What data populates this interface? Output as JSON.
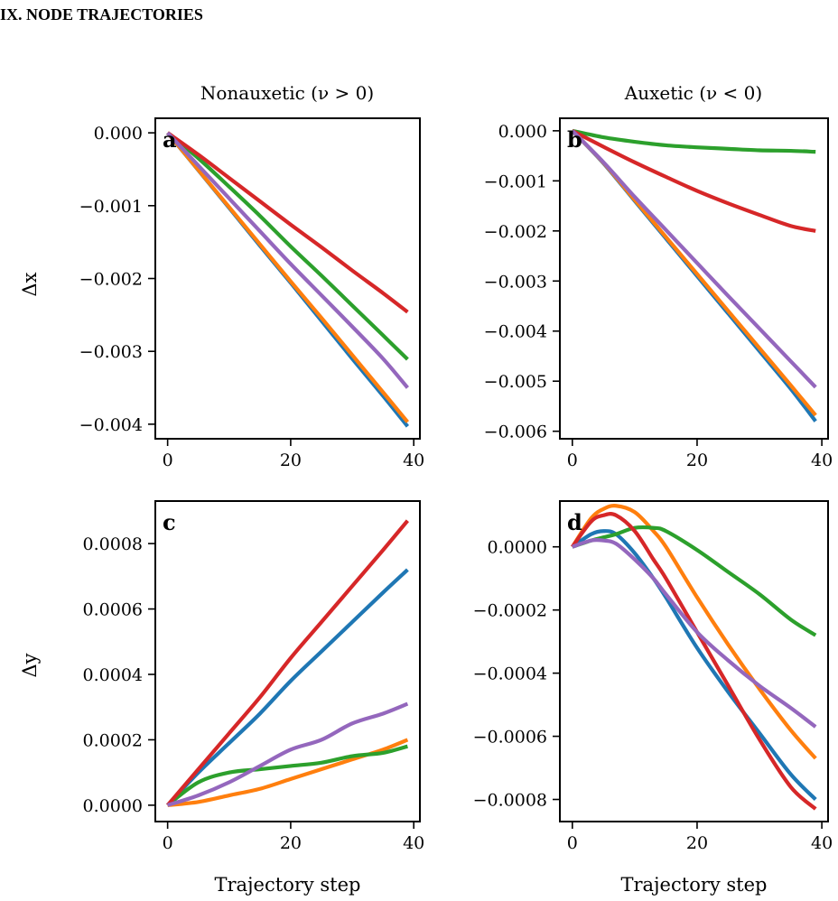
{
  "heading": "IX.    NODE TRAJECTORIES",
  "columns": {
    "left": "Nonauxetic (ν > 0)",
    "right": "Auxetic (ν < 0)"
  },
  "row_labels": {
    "top": "Δx",
    "bottom": "Δy"
  },
  "colors": {
    "blue": "#1f77b4",
    "orange": "#ff7f0e",
    "green": "#2ca02c",
    "red": "#d62728",
    "purple": "#9467bd"
  },
  "chart_data": [
    {
      "type": "line",
      "panel": "a",
      "xlabel": "",
      "ylabel": "Δx",
      "xlim": [
        -2,
        41
      ],
      "ylim": [
        -0.0042,
        0.0002
      ],
      "xticks": [
        0,
        20,
        40
      ],
      "xtick_labels": [
        "0",
        "20",
        "40"
      ],
      "yticks": [
        0,
        -0.001,
        -0.002,
        -0.003,
        -0.004
      ],
      "ytick_labels": [
        "0.000",
        "−0.001",
        "−0.002",
        "−0.003",
        "−0.004"
      ],
      "x": [
        0,
        5,
        10,
        15,
        20,
        25,
        30,
        35,
        39
      ],
      "series": [
        {
          "color": "blue",
          "values": [
            0,
            -0.000515,
            -0.00103,
            -0.00155,
            -0.00206,
            -0.00258,
            -0.0031,
            -0.00361,
            -0.00403
          ]
        },
        {
          "color": "orange",
          "values": [
            0,
            -0.00051,
            -0.00102,
            -0.00153,
            -0.00204,
            -0.00254,
            -0.00305,
            -0.00356,
            -0.00397
          ]
        },
        {
          "color": "green",
          "values": [
            0,
            -0.00035,
            -0.00074,
            -0.00114,
            -0.00156,
            -0.00196,
            -0.00237,
            -0.00278,
            -0.00311
          ]
        },
        {
          "color": "red",
          "values": [
            0,
            -0.0003,
            -0.00062,
            -0.00094,
            -0.00126,
            -0.00157,
            -0.00189,
            -0.0022,
            -0.00246
          ]
        },
        {
          "color": "purple",
          "values": [
            0,
            -0.00045,
            -0.0009,
            -0.00135,
            -0.0018,
            -0.00223,
            -0.00266,
            -0.0031,
            -0.0035
          ]
        }
      ]
    },
    {
      "type": "line",
      "panel": "b",
      "xlabel": "",
      "ylabel": "",
      "xlim": [
        -2,
        41
      ],
      "ylim": [
        -0.00615,
        0.00025
      ],
      "xticks": [
        0,
        20,
        40
      ],
      "xtick_labels": [
        "0",
        "20",
        "40"
      ],
      "yticks": [
        0,
        -0.001,
        -0.002,
        -0.003,
        -0.004,
        -0.005,
        -0.006
      ],
      "ytick_labels": [
        "0.000",
        "−0.001",
        "−0.002",
        "−0.003",
        "−0.004",
        "−0.005",
        "−0.006"
      ],
      "x": [
        0,
        5,
        10,
        15,
        20,
        25,
        30,
        35,
        39
      ],
      "series": [
        {
          "color": "blue",
          "values": [
            0,
            -0.00065,
            -0.0014,
            -0.00215,
            -0.0029,
            -0.00365,
            -0.0044,
            -0.00515,
            -0.0058
          ]
        },
        {
          "color": "orange",
          "values": [
            0,
            -0.00064,
            -0.00138,
            -0.00212,
            -0.00286,
            -0.0036,
            -0.00434,
            -0.00508,
            -0.00568
          ]
        },
        {
          "color": "green",
          "values": [
            0,
            -0.00013,
            -0.00022,
            -0.00029,
            -0.00033,
            -0.00036,
            -0.00039,
            -0.0004,
            -0.00042
          ]
        },
        {
          "color": "red",
          "values": [
            0,
            -0.00032,
            -0.00063,
            -0.00092,
            -0.0012,
            -0.00145,
            -0.00168,
            -0.0019,
            -0.002
          ]
        },
        {
          "color": "purple",
          "values": [
            0,
            -0.00063,
            -0.00132,
            -0.00198,
            -0.00264,
            -0.0033,
            -0.00395,
            -0.0046,
            -0.00512
          ]
        }
      ]
    },
    {
      "type": "line",
      "panel": "c",
      "xlabel": "Trajectory step",
      "ylabel": "Δy",
      "xlim": [
        -2,
        41
      ],
      "ylim": [
        -5e-05,
        0.00093
      ],
      "xticks": [
        0,
        20,
        40
      ],
      "xtick_labels": [
        "0",
        "20",
        "40"
      ],
      "yticks": [
        0,
        0.0002,
        0.0004,
        0.0006,
        0.0008
      ],
      "ytick_labels": [
        "0.0000",
        "0.0002",
        "0.0004",
        "0.0006",
        "0.0008"
      ],
      "x": [
        0,
        5,
        10,
        15,
        20,
        25,
        30,
        35,
        39
      ],
      "series": [
        {
          "color": "blue",
          "values": [
            0,
            0.0001,
            0.00019,
            0.00028,
            0.00038,
            0.00047,
            0.00056,
            0.00065,
            0.00072
          ]
        },
        {
          "color": "orange",
          "values": [
            0,
            1e-05,
            3e-05,
            5e-05,
            8e-05,
            0.00011,
            0.00014,
            0.00017,
            0.0002
          ]
        },
        {
          "color": "green",
          "values": [
            0,
            7e-05,
            0.0001,
            0.00011,
            0.00012,
            0.00013,
            0.00015,
            0.00016,
            0.00018
          ]
        },
        {
          "color": "red",
          "values": [
            0,
            0.00011,
            0.00022,
            0.00033,
            0.00045,
            0.00056,
            0.00067,
            0.00078,
            0.00087
          ]
        },
        {
          "color": "purple",
          "values": [
            0,
            3e-05,
            7e-05,
            0.00012,
            0.00017,
            0.0002,
            0.00025,
            0.00028,
            0.00031
          ]
        }
      ]
    },
    {
      "type": "line",
      "panel": "d",
      "xlabel": "Trajectory step",
      "ylabel": "",
      "xlim": [
        -2,
        41
      ],
      "ylim": [
        -0.00087,
        0.000145
      ],
      "xticks": [
        0,
        20,
        40
      ],
      "xtick_labels": [
        "0",
        "20",
        "40"
      ],
      "yticks": [
        0,
        -0.0002,
        -0.0004,
        -0.0006,
        -0.0008
      ],
      "ytick_labels": [
        "0.0000",
        "−0.0002",
        "−0.0004",
        "−0.0006",
        "−0.0008"
      ],
      "x": [
        0,
        3,
        5,
        7,
        10,
        13,
        15,
        20,
        25,
        30,
        35,
        39
      ],
      "series": [
        {
          "color": "blue",
          "values": [
            0,
            4e-05,
            5e-05,
            4e-05,
            -2e-05,
            -0.0001,
            -0.00016,
            -0.00032,
            -0.00046,
            -0.00059,
            -0.00072,
            -0.0008
          ]
        },
        {
          "color": "orange",
          "values": [
            0,
            9e-05,
            0.00012,
            0.00013,
            0.00011,
            5e-05,
            0,
            -0.00016,
            -0.00031,
            -0.00045,
            -0.00058,
            -0.00067
          ]
        },
        {
          "color": "green",
          "values": [
            0,
            2e-05,
            3e-05,
            4e-05,
            6e-05,
            6e-05,
            5e-05,
            -1e-05,
            -8e-05,
            -0.00015,
            -0.00023,
            -0.00028
          ]
        },
        {
          "color": "red",
          "values": [
            0,
            8e-05,
            0.0001,
            0.0001,
            5e-05,
            -4e-05,
            -0.0001,
            -0.00027,
            -0.00044,
            -0.00061,
            -0.00076,
            -0.00083
          ]
        },
        {
          "color": "purple",
          "values": [
            0,
            2e-05,
            2e-05,
            1e-05,
            -4e-05,
            -0.0001,
            -0.00015,
            -0.00027,
            -0.00036,
            -0.00044,
            -0.00051,
            -0.00057
          ]
        }
      ]
    }
  ]
}
